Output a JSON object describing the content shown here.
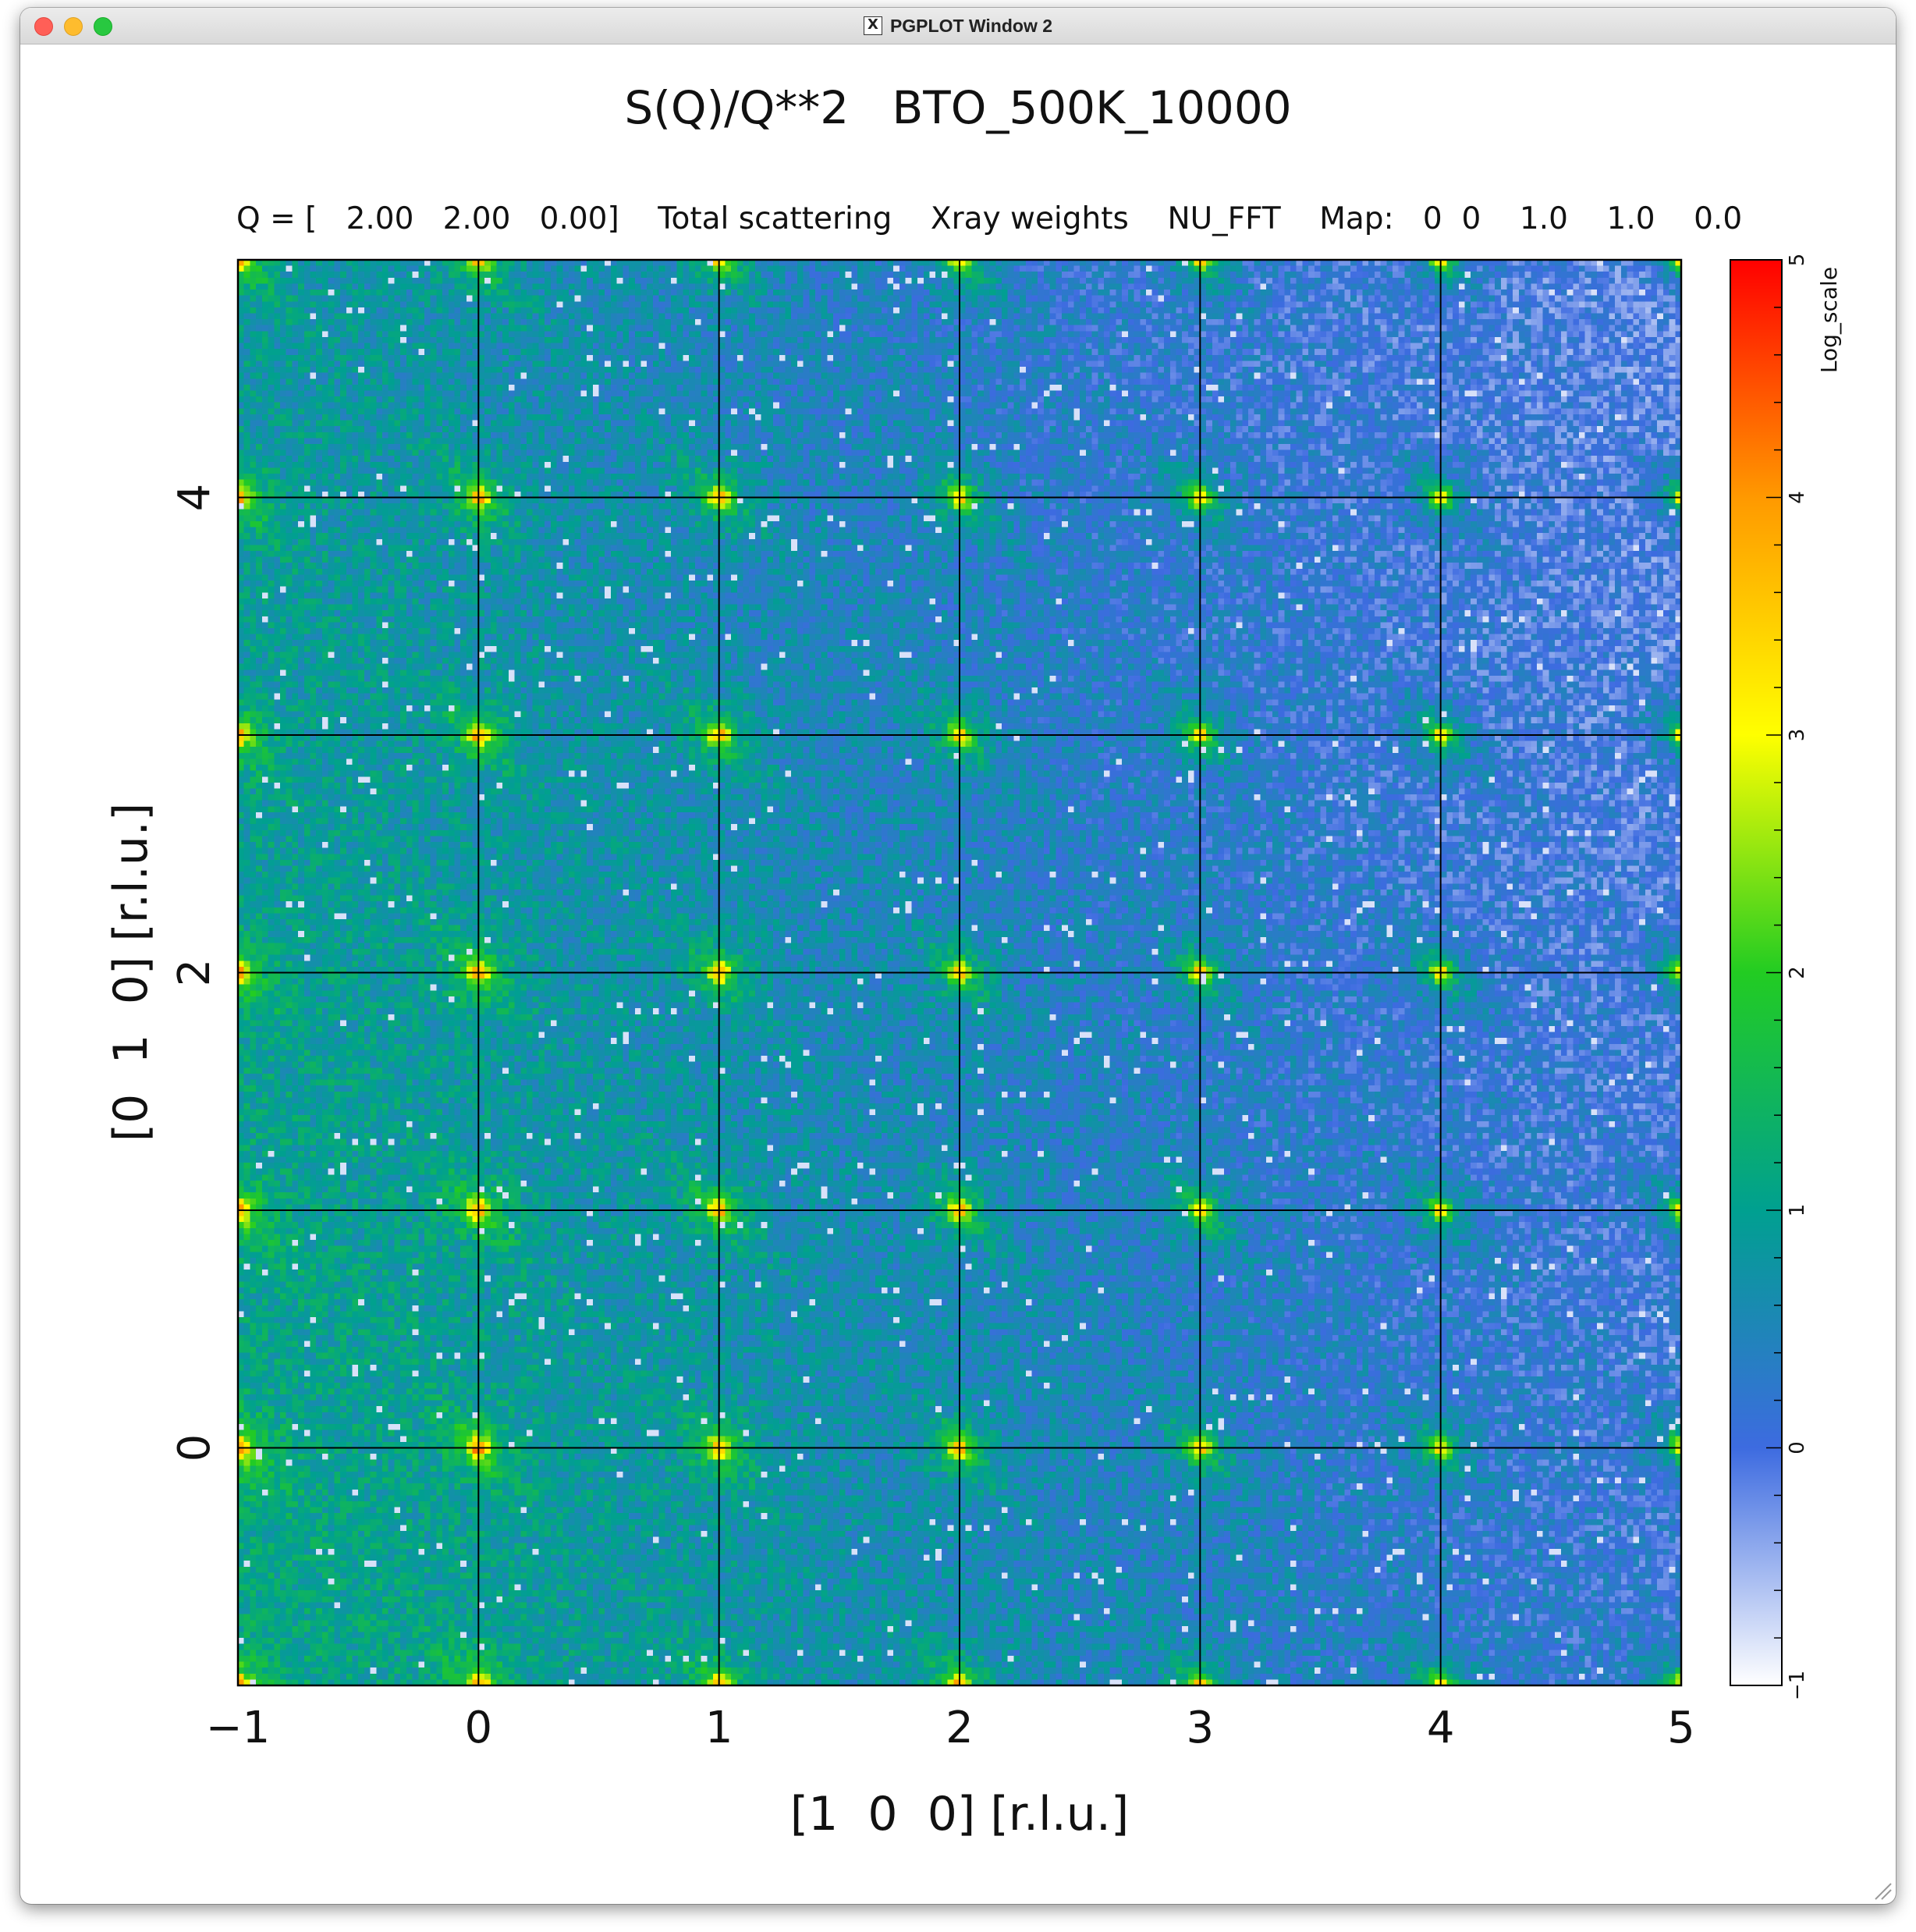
{
  "window": {
    "title": "PGPLOT Window 2",
    "app_icon": "x11-icon",
    "controls": [
      "close-button",
      "minimize-button",
      "zoom-button"
    ]
  },
  "plot": {
    "title": "S(Q)/Q**2   BTO_500K_10000",
    "subtitle": "Q = [   2.00   2.00   0.00]    Total scattering    Xray weights    NU_FFT    Map:   0  0    1.0    1.0    0.0",
    "xlabel": "[1  0  0] [r.l.u.]",
    "ylabel": "[0  1  0] [r.l.u.]",
    "colorbar_label": "Log_scale"
  },
  "chart_data": {
    "type": "heatmap",
    "x_range": [
      -1,
      5
    ],
    "y_range": [
      -1,
      5
    ],
    "x_ticks": [
      -1,
      0,
      1,
      2,
      3,
      4,
      5
    ],
    "x_tick_labels": [
      "−1",
      "0",
      "1",
      "2",
      "3",
      "4",
      "5"
    ],
    "y_ticks": [
      0,
      2,
      4
    ],
    "y_tick_labels": [
      "0",
      "2",
      "4"
    ],
    "grid_lines": [
      0,
      1,
      2,
      3,
      4
    ],
    "grid": true,
    "colorbar": {
      "range": [
        -1,
        5
      ],
      "ticks": [
        -1,
        0,
        1,
        2,
        3,
        4,
        5
      ],
      "tick_labels": [
        "−1",
        "0",
        "1",
        "2",
        "3",
        "4",
        "5"
      ],
      "scale": "log",
      "colormap": [
        "#ffffff",
        "#3d6be0",
        "#00a090",
        "#22cc22",
        "#ffff00",
        "#ff9900",
        "#ff0000"
      ]
    },
    "bragg_peaks": "integer (h, k) positions"
  }
}
